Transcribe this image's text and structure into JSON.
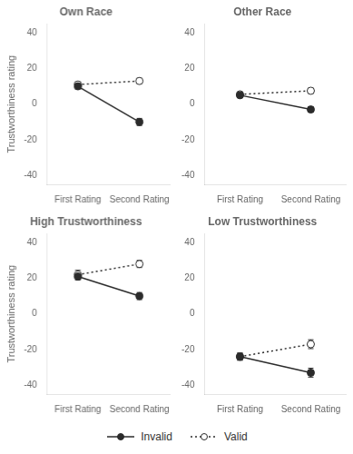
{
  "chart_data": [
    {
      "type": "line",
      "title": "Own Race",
      "y_label": "Trustworthiness rating",
      "categories": [
        "First Rating",
        "Second Rating"
      ],
      "series": [
        {
          "name": "Invalid",
          "color": "#2b2b2b",
          "line_style": "solid",
          "marker": "circle",
          "values": [
            10,
            -10
          ],
          "errors": [
            1.5,
            2.0
          ]
        },
        {
          "name": "Valid",
          "color": "#2b2b2b",
          "line_style": "dotted",
          "marker": "open_circle",
          "values": [
            11,
            13
          ],
          "errors": [
            1.5,
            1.5
          ]
        }
      ],
      "ylim": [
        -45,
        45
      ],
      "yticks": [
        -40,
        -20,
        0,
        20,
        40
      ],
      "grid": false,
      "legend": "bottom"
    },
    {
      "type": "line",
      "title": "Other Race",
      "categories": [
        "First Rating",
        "Second Rating"
      ],
      "series": [
        {
          "name": "Invalid",
          "color": "#2b2b2b",
          "line_style": "solid",
          "marker": "circle",
          "values": [
            5,
            -3
          ],
          "errors": [
            1.2,
            1.5
          ]
        },
        {
          "name": "Valid",
          "color": "#2b2b2b",
          "line_style": "dotted",
          "marker": "open_circle",
          "values": [
            5.5,
            7.5
          ],
          "errors": [
            1.2,
            1.5
          ]
        }
      ],
      "ylim": [
        -45,
        45
      ],
      "yticks": [
        -40,
        -20,
        0,
        20,
        40
      ],
      "grid": false,
      "legend": "bottom"
    },
    {
      "type": "line",
      "title": "High Trustworthiness",
      "y_label": "Trustworthiness rating",
      "categories": [
        "First Rating",
        "Second Rating"
      ],
      "series": [
        {
          "name": "Invalid",
          "color": "#2b2b2b",
          "line_style": "solid",
          "marker": "circle",
          "values": [
            21,
            10
          ],
          "errors": [
            2.0,
            2.0
          ]
        },
        {
          "name": "Valid",
          "color": "#2b2b2b",
          "line_style": "dotted",
          "marker": "open_circle",
          "values": [
            22,
            28
          ],
          "errors": [
            2.5,
            2.0
          ]
        }
      ],
      "ylim": [
        -45,
        45
      ],
      "yticks": [
        -40,
        -20,
        0,
        20,
        40
      ],
      "grid": false,
      "legend": "bottom"
    },
    {
      "type": "line",
      "title": "Low Trustworthiness",
      "categories": [
        "First Rating",
        "Second Rating"
      ],
      "series": [
        {
          "name": "Invalid",
          "color": "#2b2b2b",
          "line_style": "solid",
          "marker": "circle",
          "values": [
            -24,
            -33
          ],
          "errors": [
            2.0,
            2.5
          ]
        },
        {
          "name": "Valid",
          "color": "#2b2b2b",
          "line_style": "dotted",
          "marker": "open_circle",
          "values": [
            -24,
            -17
          ],
          "errors": [
            2.0,
            2.5
          ]
        }
      ],
      "ylim": [
        -45,
        45
      ],
      "yticks": [
        -40,
        -20,
        0,
        20,
        40
      ],
      "grid": false,
      "legend": "bottom"
    }
  ]
}
